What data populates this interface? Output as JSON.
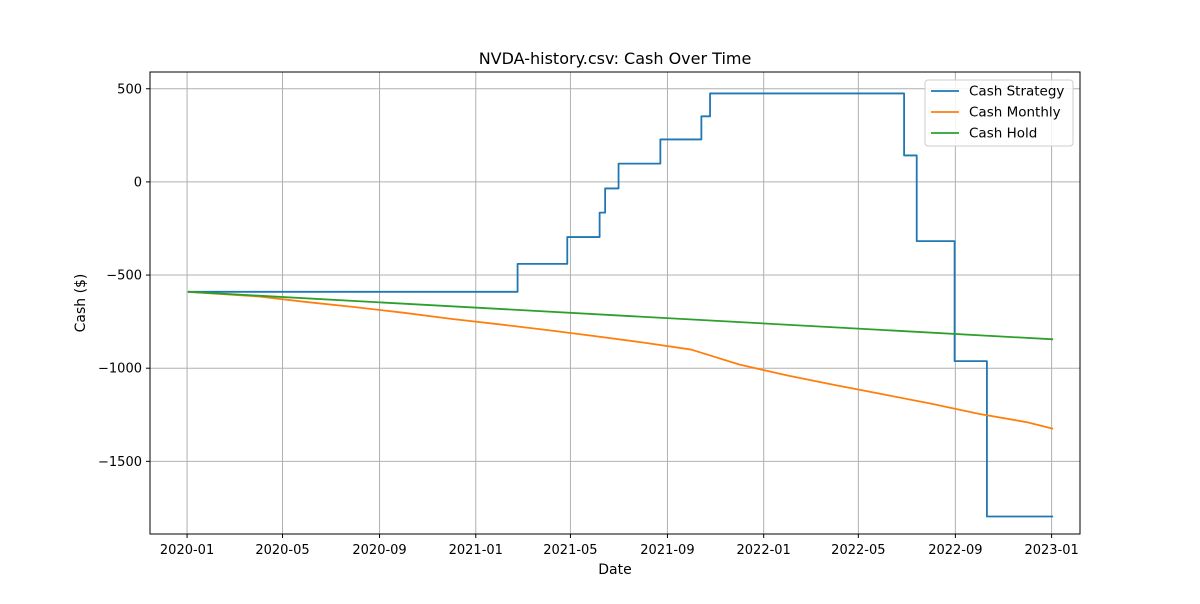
{
  "chart_data": {
    "type": "line",
    "title": "NVDA-history.csv: Cash Over Time",
    "xlabel": "Date",
    "ylabel": "Cash ($)",
    "x_type": "date",
    "xlim": [
      "2019-11-15",
      "2023-02-06"
    ],
    "ylim": [
      -1890,
      590
    ],
    "grid": true,
    "legend_position": "top-right",
    "x_ticks": [
      {
        "date": "2020-01-01",
        "label": "2020-01"
      },
      {
        "date": "2020-05-01",
        "label": "2020-05"
      },
      {
        "date": "2020-09-01",
        "label": "2020-09"
      },
      {
        "date": "2021-01-01",
        "label": "2021-01"
      },
      {
        "date": "2021-05-01",
        "label": "2021-05"
      },
      {
        "date": "2021-09-01",
        "label": "2021-09"
      },
      {
        "date": "2022-01-01",
        "label": "2022-01"
      },
      {
        "date": "2022-05-01",
        "label": "2022-05"
      },
      {
        "date": "2022-09-01",
        "label": "2022-09"
      },
      {
        "date": "2023-01-01",
        "label": "2023-01"
      }
    ],
    "y_ticks": [
      {
        "value": 500,
        "label": "500"
      },
      {
        "value": 0,
        "label": "0"
      },
      {
        "value": -500,
        "label": "−500"
      },
      {
        "value": -1000,
        "label": "−1000"
      },
      {
        "value": -1500,
        "label": "−1500"
      }
    ],
    "series": [
      {
        "name": "Cash Strategy",
        "color": "#1f77b4",
        "step": true,
        "points": [
          [
            "2020-01-02",
            -590
          ],
          [
            "2021-02-23",
            -440
          ],
          [
            "2021-04-27",
            -296
          ],
          [
            "2021-06-07",
            -165
          ],
          [
            "2021-06-14",
            -35
          ],
          [
            "2021-07-01",
            98
          ],
          [
            "2021-08-23",
            228
          ],
          [
            "2021-10-14",
            352
          ],
          [
            "2021-10-25",
            475
          ],
          [
            "2022-06-28",
            142
          ],
          [
            "2022-07-14",
            -318
          ],
          [
            "2022-08-31",
            -962
          ],
          [
            "2022-10-11",
            -1796
          ],
          [
            "2023-01-03",
            -1796
          ]
        ]
      },
      {
        "name": "Cash Monthly",
        "color": "#ff7f0e",
        "step": false,
        "points": [
          [
            "2020-01-02",
            -590
          ],
          [
            "2020-04-01",
            -615
          ],
          [
            "2020-06-01",
            -645
          ],
          [
            "2020-08-01",
            -672
          ],
          [
            "2020-10-01",
            -702
          ],
          [
            "2020-12-01",
            -735
          ],
          [
            "2021-02-01",
            -765
          ],
          [
            "2021-04-01",
            -795
          ],
          [
            "2021-06-01",
            -828
          ],
          [
            "2021-08-01",
            -862
          ],
          [
            "2021-10-01",
            -900
          ],
          [
            "2021-12-01",
            -980
          ],
          [
            "2022-02-01",
            -1040
          ],
          [
            "2022-04-01",
            -1090
          ],
          [
            "2022-06-01",
            -1140
          ],
          [
            "2022-08-01",
            -1190
          ],
          [
            "2022-10-01",
            -1245
          ],
          [
            "2022-12-01",
            -1290
          ],
          [
            "2023-01-03",
            -1325
          ]
        ]
      },
      {
        "name": "Cash Hold",
        "color": "#2ca02c",
        "step": false,
        "points": [
          [
            "2020-01-02",
            -590
          ],
          [
            "2023-01-03",
            -845
          ]
        ]
      }
    ]
  }
}
